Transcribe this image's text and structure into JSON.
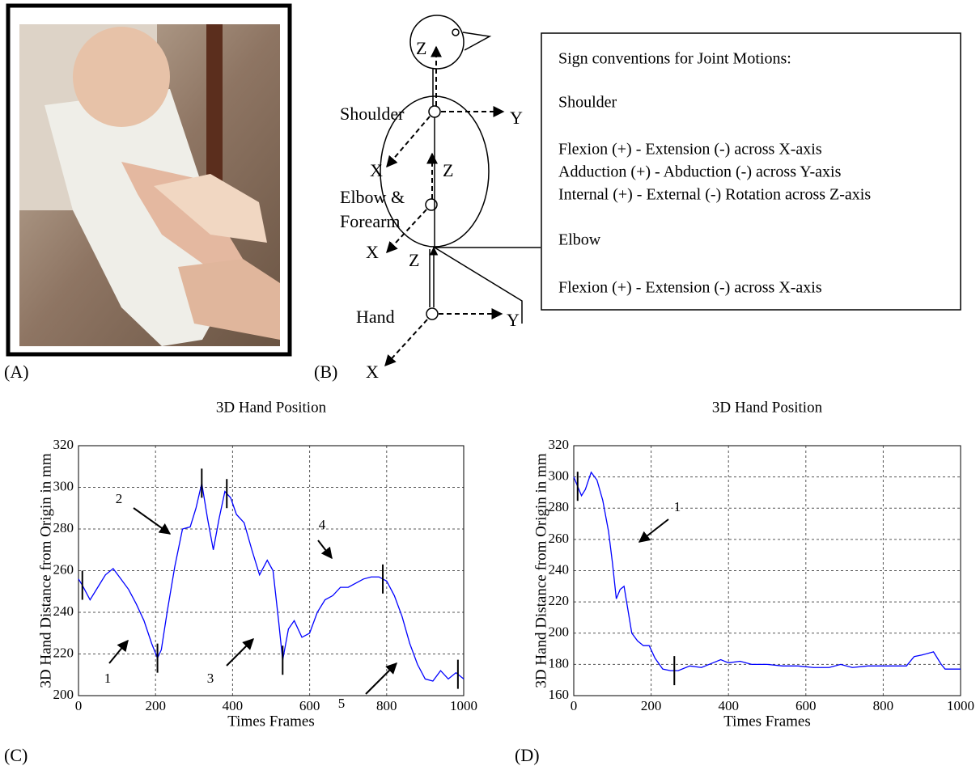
{
  "panels": {
    "a": "(A)",
    "b": "(B)",
    "c": "(C)",
    "d": "(D)"
  },
  "diagram": {
    "labels": [
      "Z",
      "Shoulder",
      "Y",
      "X",
      "Z",
      "Elbow &",
      "Forearm",
      "X",
      "Z",
      "Hand",
      "Y",
      "X"
    ]
  },
  "sign_conventions": {
    "title": "Sign conventions for Joint Motions:",
    "shoulder_heading": "Shoulder",
    "shoulder_lines": [
      "Flexion (+) - Extension (-) across X-axis",
      "Adduction (+) - Abduction (-) across Y-axis",
      "Internal (+) - External (-) Rotation across Z-axis"
    ],
    "elbow_heading": "Elbow",
    "elbow_lines": [
      "Flexion (+) - Extension (-) across X-axis"
    ]
  },
  "chart_data": [
    {
      "type": "line",
      "title": "3D Hand Position",
      "x_label": "Times Frames",
      "y_label": "3D Hand Distance from Origin in mm",
      "x": [
        0,
        10,
        30,
        50,
        70,
        90,
        110,
        130,
        150,
        170,
        190,
        205,
        215,
        230,
        250,
        270,
        290,
        305,
        320,
        335,
        350,
        365,
        380,
        395,
        410,
        430,
        450,
        470,
        490,
        505,
        520,
        530,
        545,
        560,
        580,
        600,
        620,
        640,
        660,
        680,
        700,
        720,
        740,
        760,
        780,
        800,
        820,
        840,
        860,
        880,
        900,
        920,
        940,
        960,
        980,
        1000
      ],
      "series": [
        {
          "color": "#0000ff",
          "values": [
            256,
            253,
            246,
            252,
            258,
            261,
            256,
            251,
            244,
            236,
            225,
            218,
            222,
            240,
            262,
            280,
            281,
            290,
            302,
            285,
            270,
            285,
            298,
            295,
            287,
            283,
            270,
            258,
            265,
            260,
            235,
            217,
            232,
            236,
            228,
            230,
            240,
            246,
            248,
            252,
            252,
            254,
            256,
            257,
            257,
            255,
            248,
            238,
            225,
            215,
            208,
            207,
            212,
            208,
            211,
            208
          ]
        }
      ],
      "xlim": [
        0,
        1000
      ],
      "ylim": [
        200,
        320
      ],
      "xticks": [
        0,
        200,
        400,
        600,
        800,
        1000
      ],
      "yticks": [
        200,
        220,
        240,
        260,
        280,
        300,
        320
      ],
      "grid": true,
      "annotations": [
        "1",
        "2",
        "3",
        "4",
        "5"
      ],
      "event_frames": [
        10,
        205,
        320,
        385,
        530,
        790,
        985
      ]
    },
    {
      "type": "line",
      "title": "3D Hand Position",
      "x_label": "Times Frames",
      "y_label": "3D Hand Distance from Origin in mm",
      "x": [
        0,
        10,
        20,
        30,
        45,
        60,
        75,
        90,
        100,
        110,
        120,
        130,
        140,
        150,
        165,
        180,
        195,
        210,
        230,
        250,
        270,
        300,
        330,
        360,
        380,
        400,
        430,
        460,
        500,
        540,
        580,
        620,
        660,
        690,
        720,
        760,
        800,
        860,
        880,
        900,
        930,
        950,
        960,
        1000
      ],
      "series": [
        {
          "color": "#0000ff",
          "values": [
            300,
            294,
            288,
            292,
            303,
            298,
            285,
            265,
            245,
            222,
            228,
            230,
            215,
            200,
            195,
            192,
            192,
            184,
            177,
            176,
            176,
            179,
            178,
            181,
            183,
            181,
            182,
            180,
            180,
            179,
            179,
            178,
            178,
            180,
            178,
            179,
            179,
            179,
            185,
            186,
            188,
            180,
            177,
            177
          ]
        }
      ],
      "xlim": [
        0,
        1000
      ],
      "ylim": [
        160,
        320
      ],
      "xticks": [
        0,
        200,
        400,
        600,
        800,
        1000
      ],
      "yticks": [
        160,
        180,
        200,
        220,
        240,
        260,
        280,
        300,
        320
      ],
      "grid": true,
      "annotations": [
        "1"
      ],
      "event_frames": [
        10,
        260
      ]
    }
  ]
}
